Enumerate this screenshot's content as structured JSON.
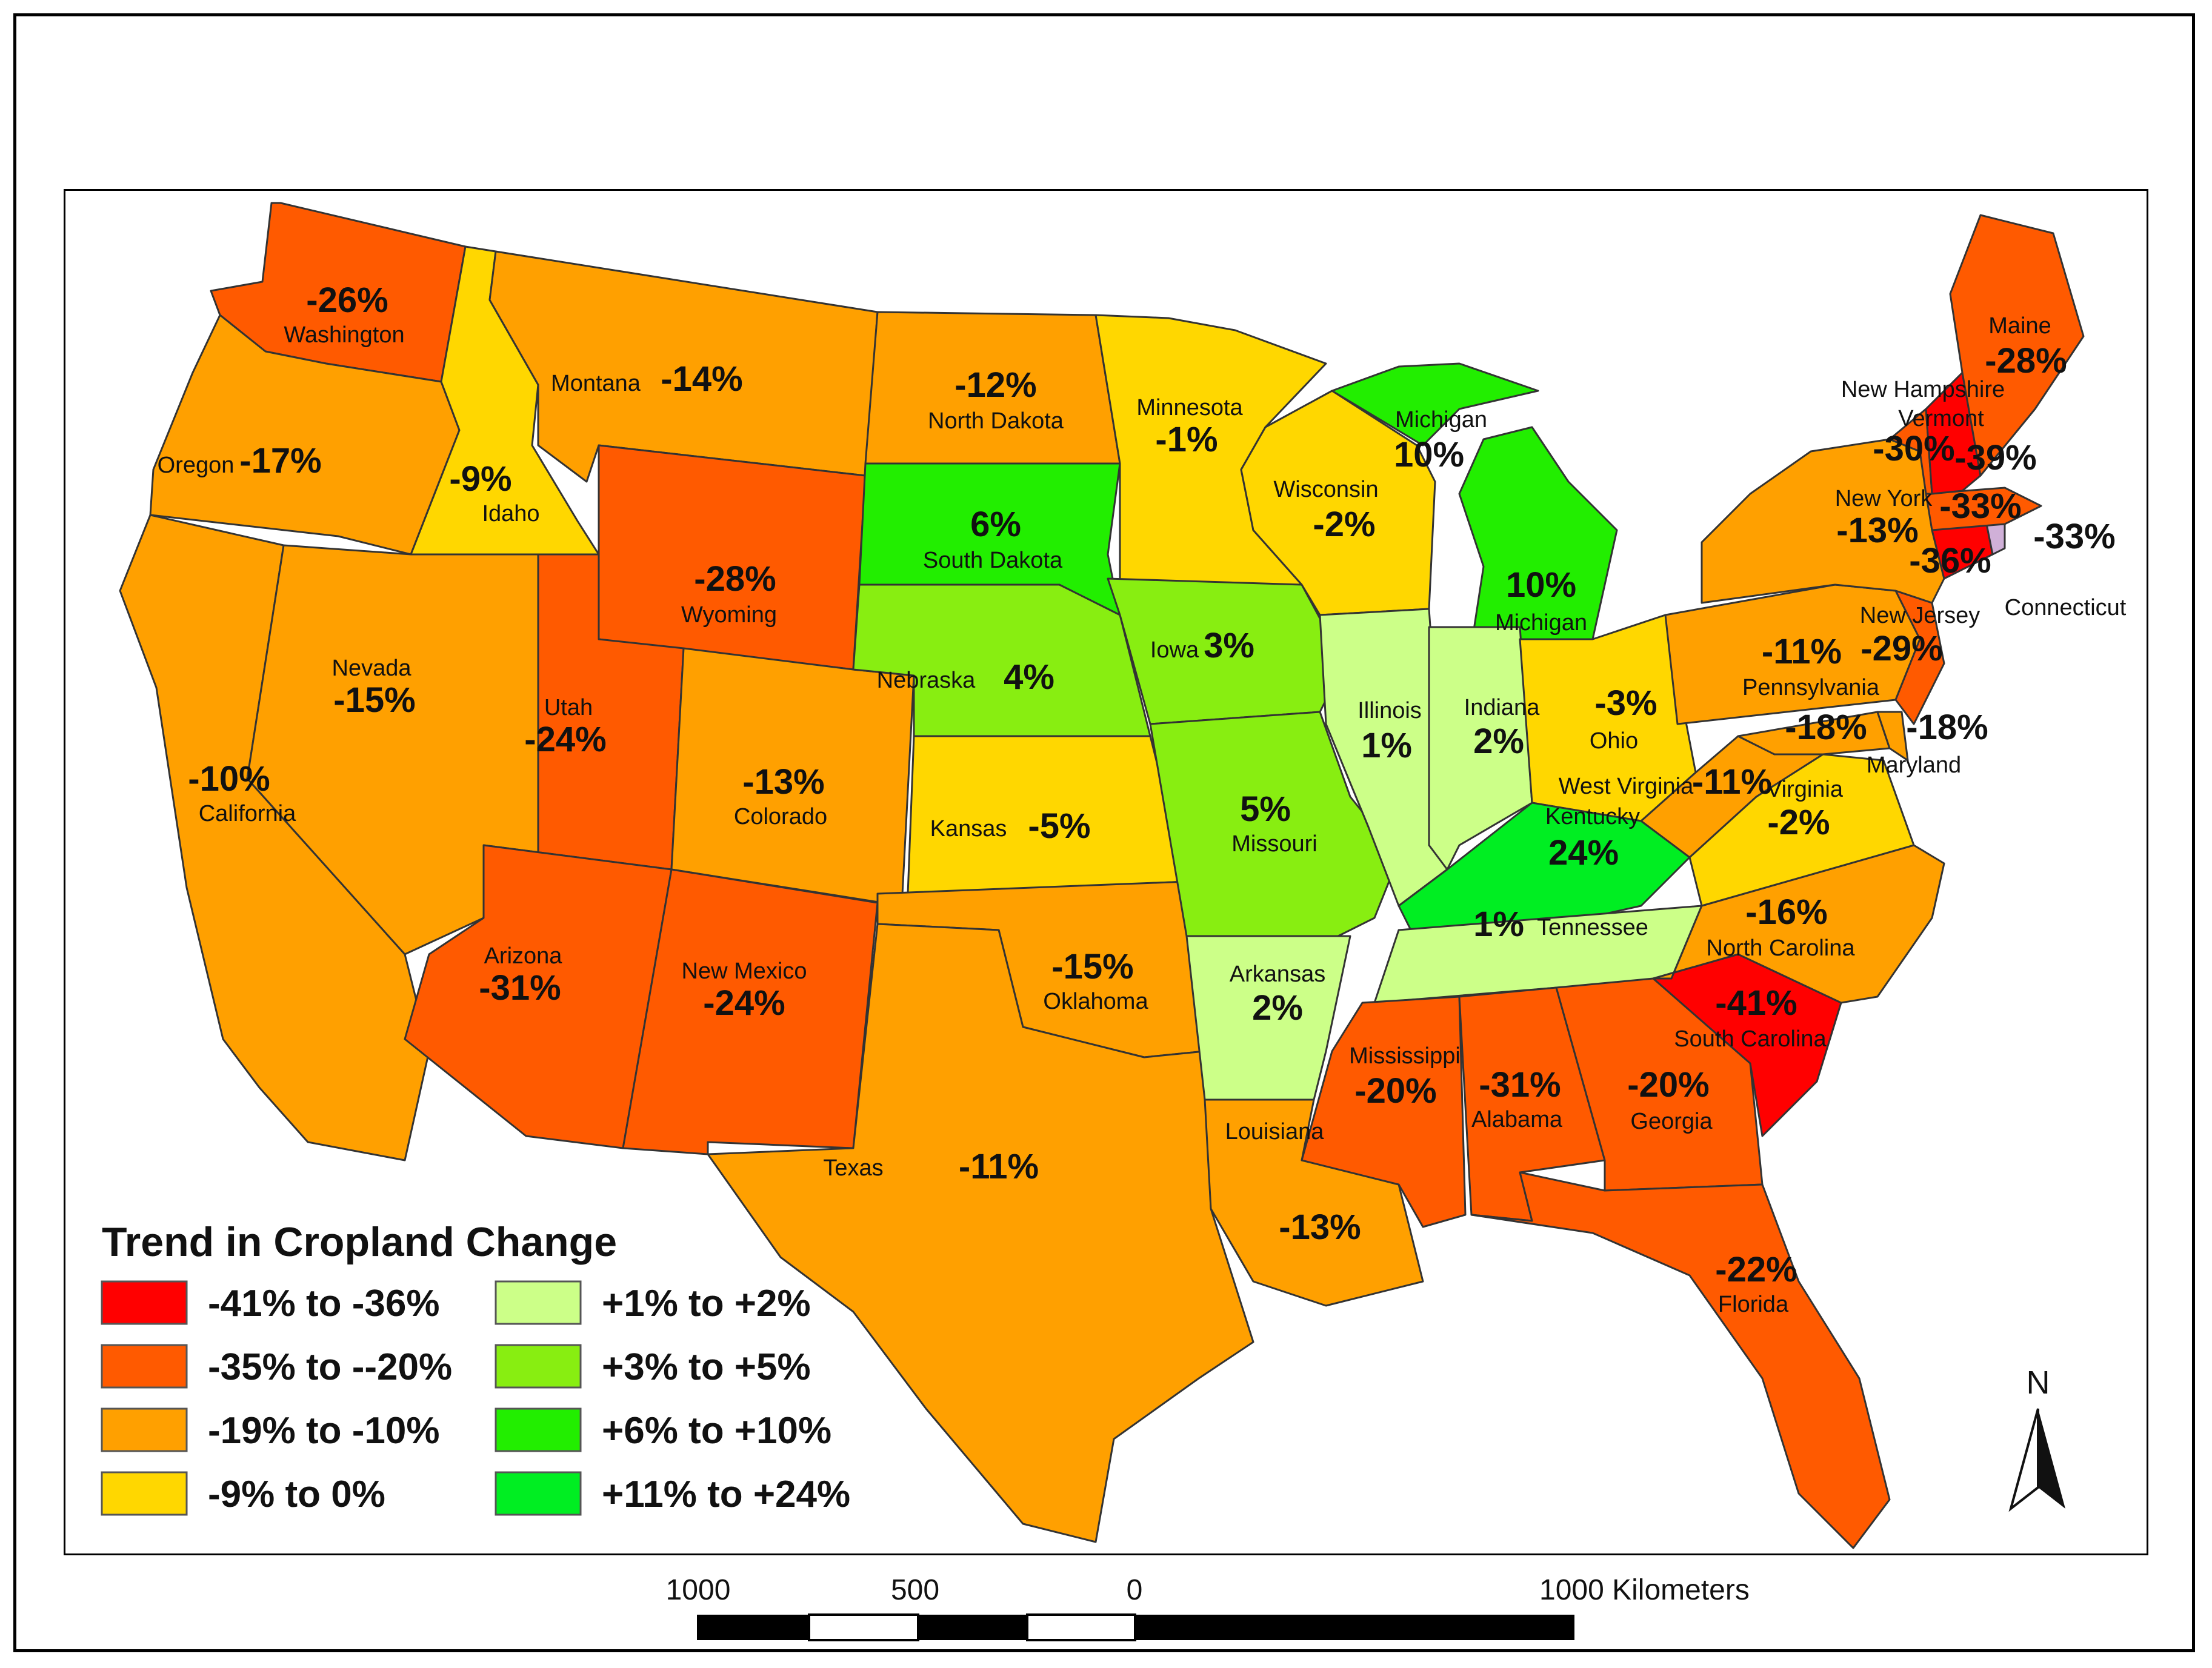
{
  "legend": {
    "title": "Trend in Cropland Change",
    "items": [
      {
        "label": "-41% to -36%",
        "color": "#ff0000"
      },
      {
        "label": "-35% to --20%",
        "color": "#ff5a00"
      },
      {
        "label": "-19% to -10%",
        "color": "#ffa000"
      },
      {
        "label": "-9% to 0%",
        "color": "#ffd700"
      },
      {
        "label": "+1% to +2%",
        "color": "#ccff88"
      },
      {
        "label": "+3% to +5%",
        "color": "#88ee11"
      },
      {
        "label": "+6% to +10%",
        "color": "#22ee00"
      },
      {
        "label": "+11% to +24%",
        "color": "#00ee22"
      }
    ]
  },
  "colors": {
    "neg_high": "#ff0000",
    "neg_mid": "#ff5a00",
    "neg_low": "#ffa000",
    "neg_small": "#ffd700",
    "pos_small": "#ccff88",
    "pos_mid": "#88ee11",
    "pos_high": "#22ee00",
    "pos_max": "#00ee22",
    "border": "#333333",
    "special_ct": "#d0b0d8"
  },
  "north_arrow": {
    "label": "N"
  },
  "scale_bar": {
    "labels": [
      "1000",
      "500",
      "0",
      "1000 Kilometers"
    ]
  },
  "states": {
    "washington": {
      "name": "Washington",
      "value": "-26%"
    },
    "oregon": {
      "name": "Oregon",
      "value": "-17%"
    },
    "california": {
      "name": "California",
      "value": "-10%"
    },
    "idaho": {
      "name": "Idaho",
      "value": "-9%"
    },
    "nevada": {
      "name": "Nevada",
      "value": "-15%"
    },
    "montana": {
      "name": "Montana",
      "value": "-14%"
    },
    "wyoming": {
      "name": "Wyoming",
      "value": "-28%"
    },
    "utah": {
      "name": "Utah",
      "value": "-24%"
    },
    "arizona": {
      "name": "Arizona",
      "value": "-31%"
    },
    "colorado": {
      "name": "Colorado",
      "value": "-13%"
    },
    "new_mexico": {
      "name": "New Mexico",
      "value": "-24%"
    },
    "north_dakota": {
      "name": "North Dakota",
      "value": "-12%"
    },
    "south_dakota": {
      "name": "South Dakota",
      "value": "6%"
    },
    "nebraska": {
      "name": "Nebraska",
      "value": "4%"
    },
    "kansas": {
      "name": "Kansas",
      "value": "-5%"
    },
    "oklahoma": {
      "name": "Oklahoma",
      "value": "-15%"
    },
    "texas": {
      "name": "Texas",
      "value": "-11%"
    },
    "minnesota": {
      "name": "Minnesota",
      "value": "-1%"
    },
    "iowa": {
      "name": "Iowa",
      "value": "3%"
    },
    "missouri": {
      "name": "Missouri",
      "value": "5%"
    },
    "arkansas": {
      "name": "Arkansas",
      "value": "2%"
    },
    "louisiana": {
      "name": "Louisiana",
      "value": "-13%"
    },
    "wisconsin": {
      "name": "Wisconsin",
      "value": "-2%"
    },
    "illinois": {
      "name": "Illinois",
      "value": "1%"
    },
    "michigan_up": {
      "name": "Michigan",
      "value": "10%"
    },
    "michigan": {
      "name": "Michigan",
      "value": "10%"
    },
    "indiana": {
      "name": "Indiana",
      "value": "2%"
    },
    "ohio": {
      "name": "Ohio",
      "value": "-3%"
    },
    "kentucky": {
      "name": "Kentucky",
      "value": "24%"
    },
    "tennessee": {
      "name": "Tennessee",
      "value": "1%"
    },
    "mississippi": {
      "name": "Mississippi",
      "value": "-20%"
    },
    "alabama": {
      "name": "Alabama",
      "value": "-31%"
    },
    "georgia": {
      "name": "Georgia",
      "value": "-20%"
    },
    "florida": {
      "name": "Florida",
      "value": "-22%"
    },
    "south_carolina": {
      "name": "South Carolina",
      "value": "-41%"
    },
    "north_carolina": {
      "name": "North Carolina",
      "value": "-16%"
    },
    "virginia": {
      "name": "Virginia",
      "value": "-2%"
    },
    "west_virginia": {
      "name": "West Virginia",
      "value": "-11%"
    },
    "pennsylvania": {
      "name": "Pennsylvania",
      "value": "-11%"
    },
    "new_york": {
      "name": "New York",
      "value": "-13%"
    },
    "vermont": {
      "name": "Vermont",
      "value": "-30%"
    },
    "new_hampshire": {
      "name": "New Hampshire",
      "value": "-39%"
    },
    "maine": {
      "name": "Maine",
      "value": "-28%"
    },
    "massachusetts": {
      "name": "",
      "value": "-33%"
    },
    "rhode_island": {
      "name": "",
      "value": "-33%"
    },
    "connecticut": {
      "name": "Connecticut",
      "value": "-36%"
    },
    "new_jersey": {
      "name": "New Jersey",
      "value": "-29%"
    },
    "maryland": {
      "name": "Maryland",
      "value": "-18%"
    },
    "delaware": {
      "name": "",
      "value": "-18%"
    }
  }
}
